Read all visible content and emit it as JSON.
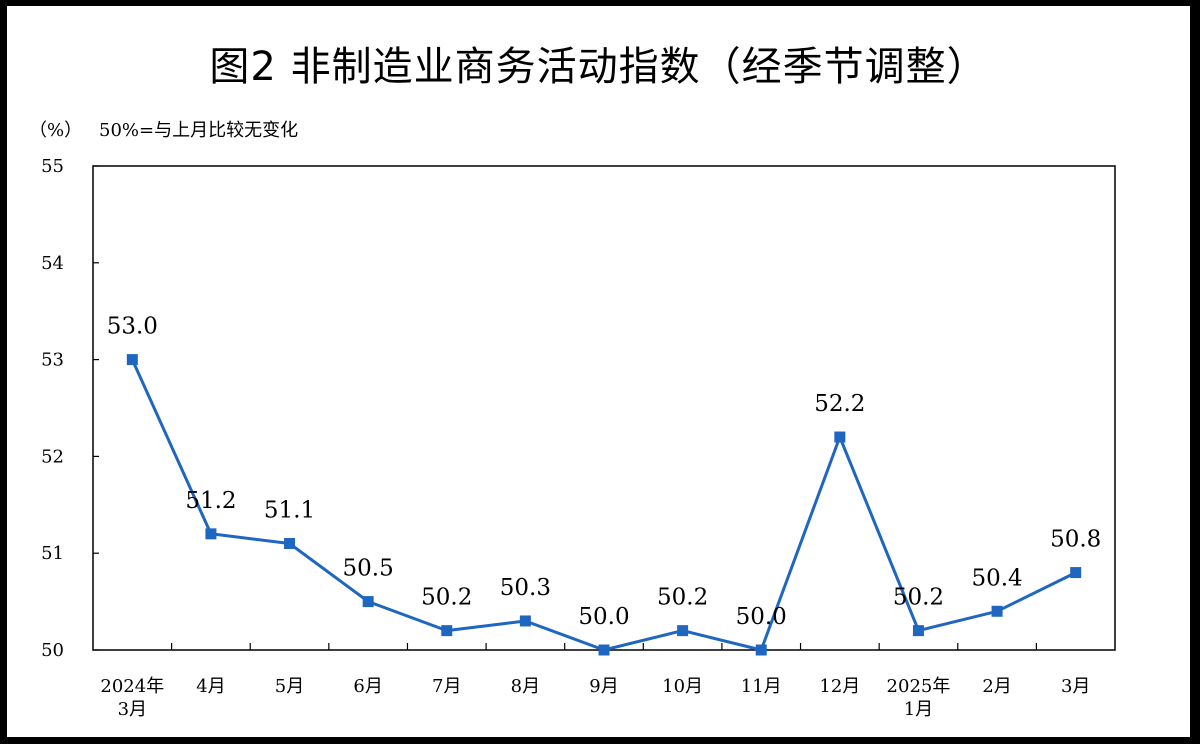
{
  "title": "图2  非制造业商务活动指数（经季节调整）",
  "unit_label": "（%）",
  "note": "50%=与上月比较无变化",
  "chart_data": {
    "type": "line",
    "title": "图2  非制造业商务活动指数（经季节调整）",
    "ylabel": "（%）",
    "xlabel": "",
    "ylim": [
      50,
      55
    ],
    "yticks": [
      "50",
      "51",
      "52",
      "53",
      "54",
      "55"
    ],
    "categories": [
      [
        "2024年",
        "3月"
      ],
      [
        "4月"
      ],
      [
        "5月"
      ],
      [
        "6月"
      ],
      [
        "7月"
      ],
      [
        "8月"
      ],
      [
        "9月"
      ],
      [
        "10月"
      ],
      [
        "11月"
      ],
      [
        "12月"
      ],
      [
        "2025年",
        "1月"
      ],
      [
        "2月"
      ],
      [
        "3月"
      ]
    ],
    "values": [
      53.0,
      51.2,
      51.1,
      50.5,
      50.2,
      50.3,
      50.0,
      50.2,
      50.0,
      52.2,
      50.2,
      50.4,
      50.8
    ],
    "data_labels": [
      "53.0",
      "51.2",
      "51.1",
      "50.5",
      "50.2",
      "50.3",
      "50.0",
      "50.2",
      "50.0",
      "52.2",
      "50.2",
      "50.4",
      "50.8"
    ],
    "grid": false,
    "legend": "none",
    "line_color": "#1f66c0",
    "marker": "square"
  }
}
